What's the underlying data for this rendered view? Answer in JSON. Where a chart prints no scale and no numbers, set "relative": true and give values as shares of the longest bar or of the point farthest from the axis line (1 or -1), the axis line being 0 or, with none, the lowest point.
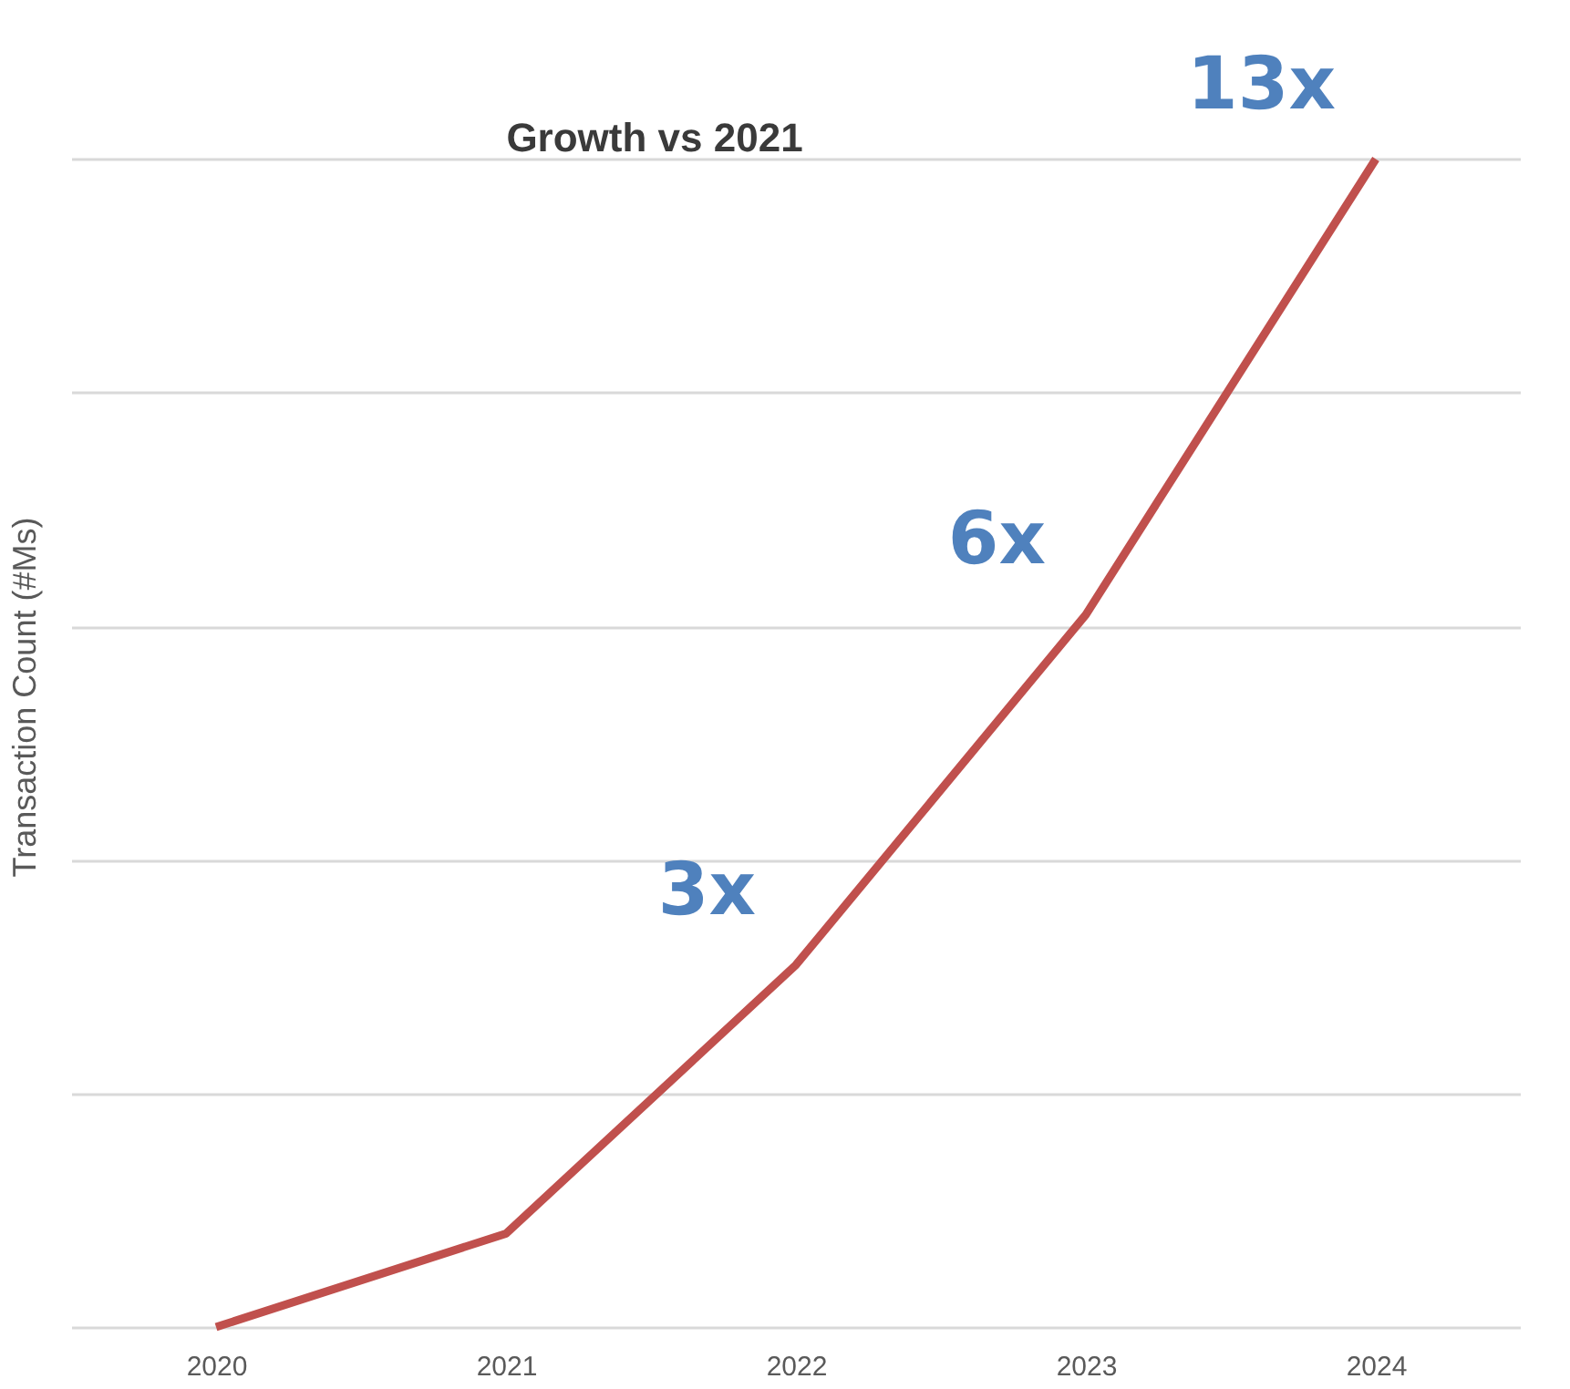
{
  "chart_data": {
    "type": "line",
    "relative": true,
    "ylabel": "Transaction Count (#Ms)",
    "categories": [
      "2020",
      "2021",
      "2022",
      "2023",
      "2024"
    ],
    "series": [
      {
        "color": "#c0504d",
        "values": [
          0,
          0.08,
          0.31,
          0.61,
          1
        ]
      }
    ],
    "grid": "y",
    "marker": "none",
    "annotations": [
      "Growth vs 2021",
      {
        "text": "3x",
        "x": "2022",
        "y": 0.31
      },
      {
        "text": "6x",
        "x": "2023",
        "y": 0.61
      },
      {
        "text": "13x",
        "x": "2024",
        "y": 1
      }
    ]
  }
}
